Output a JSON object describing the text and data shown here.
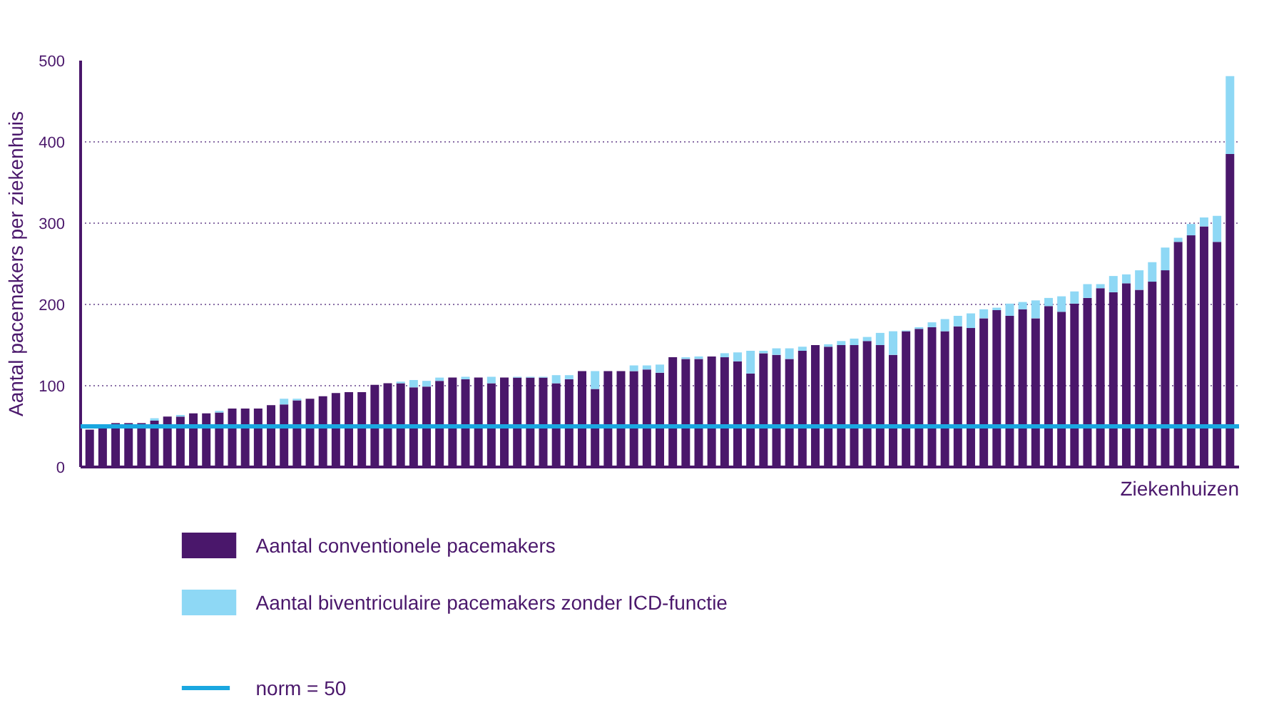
{
  "chart_data": {
    "type": "bar",
    "stacked": true,
    "ylabel": "Aantal pacemakers per ziekenhuis",
    "xlabel": "Ziekenhuizen",
    "categories": [
      null,
      null,
      null,
      null,
      null,
      null,
      null,
      null,
      null,
      null,
      null,
      null,
      null,
      null,
      null,
      null,
      null,
      null,
      null,
      null,
      null,
      null,
      null,
      null,
      null,
      null,
      null,
      null,
      null,
      null,
      null,
      null,
      null,
      null,
      null,
      null,
      null,
      null,
      null,
      null,
      null,
      null,
      null,
      null,
      null,
      null,
      null,
      null,
      null,
      null,
      null,
      null,
      null,
      null,
      null,
      null,
      null,
      null,
      null,
      null,
      null,
      null,
      null,
      null,
      null,
      null,
      null,
      null,
      null,
      null,
      null,
      null,
      null,
      null,
      null,
      null,
      null,
      null,
      null,
      null,
      null,
      null,
      null,
      null,
      null,
      null,
      null,
      null,
      null
    ],
    "series": [
      {
        "name": "Aantal conventionele pacemakers",
        "color": "#4a176b",
        "values": [
          46,
          52,
          54,
          54,
          54,
          57,
          62,
          62,
          66,
          66,
          67,
          72,
          72,
          72,
          76,
          77,
          82,
          84,
          87,
          91,
          92,
          92,
          101,
          103,
          103,
          98,
          99,
          106,
          110,
          108,
          110,
          103,
          110,
          110,
          110,
          110,
          103,
          108,
          118,
          96,
          118,
          118,
          118,
          120,
          116,
          135,
          133,
          133,
          136,
          135,
          130,
          115,
          140,
          138,
          133,
          143,
          150,
          148,
          150,
          150,
          155,
          150,
          138,
          167,
          170,
          172,
          167,
          173,
          171,
          183,
          193,
          186,
          194,
          183,
          198,
          191,
          201,
          208,
          220,
          215,
          226,
          218,
          228,
          242,
          277,
          285,
          296,
          277,
          385
        ]
      },
      {
        "name": "Aantal biventriculaire pacemakers zonder ICD-functie",
        "color": "#8ed8f5",
        "values": [
          null,
          0,
          0,
          0,
          0,
          3,
          0,
          2,
          0,
          0,
          2,
          0,
          0,
          0,
          0,
          7,
          2,
          0,
          0,
          0,
          0,
          0,
          0,
          0,
          2,
          9,
          7,
          4,
          0,
          3,
          0,
          8,
          0,
          1,
          1,
          1,
          10,
          5,
          0,
          22,
          0,
          0,
          7,
          5,
          10,
          0,
          2,
          3,
          0,
          5,
          11,
          28,
          3,
          8,
          13,
          5,
          0,
          3,
          5,
          8,
          5,
          15,
          29,
          1,
          2,
          6,
          15,
          13,
          18,
          11,
          3,
          15,
          9,
          22,
          10,
          19,
          15,
          17,
          5,
          20,
          11,
          24,
          24,
          28,
          5,
          14,
          11,
          32,
          96
        ]
      }
    ],
    "ylim": [
      0,
      500
    ],
    "yticks": [
      0,
      100,
      200,
      300,
      400,
      500
    ],
    "grid": "y",
    "tick_labels": "y",
    "legend": "bottom",
    "ref_lines": [
      {
        "axis": "y",
        "value": 50,
        "label": "norm = 50",
        "color": "#1aa7e0"
      }
    ]
  }
}
